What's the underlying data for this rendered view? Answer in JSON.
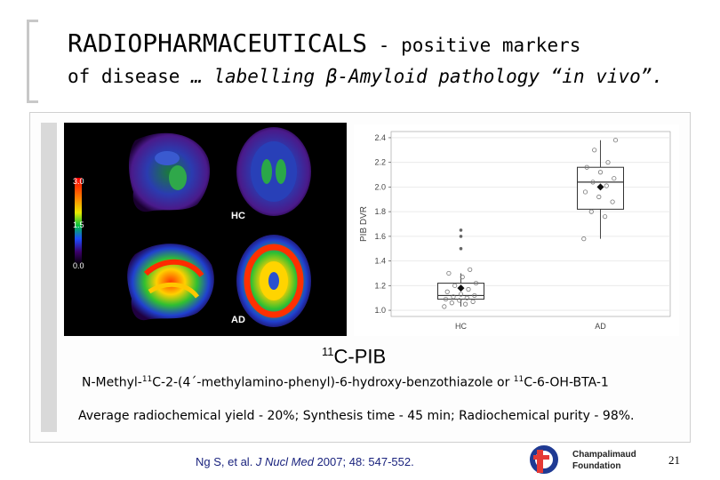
{
  "slide": {
    "title_main": "RADIOPHARMACEUTICALS",
    "title_sub": " - positive markers",
    "title_line2_a": "of disease ",
    "title_line2_b": " … labelling β-Amyloid pathology “in vivo”.",
    "tracer_sup": "11",
    "tracer_name": "C-PIB",
    "chem_a": "N-Methyl-",
    "chem_sup1": "11",
    "chem_b": "C-2-(4´-methylamino-phenyl)-6-hydroxy-benzothiazole or ",
    "chem_sup2": "11",
    "chem_c": "C-6-OH-BTA-1",
    "yield_text": "Average radiochemical yield - 20%; Synthesis time - 45 min; Radiochemical purity - 98%.",
    "ref_a": "Ng S, et al. ",
    "ref_journal": "J Nucl Med",
    "ref_b": " 2007; 48: 547-552.",
    "logo_line1": "Champalimaud",
    "logo_line2": "Foundation",
    "page_number": "21"
  },
  "pet_figure": {
    "scale_ticks": [
      "3.0",
      "1.5",
      "0.0"
    ],
    "row_labels": [
      "HC",
      "AD"
    ]
  },
  "chart_data": {
    "type": "box",
    "title": "",
    "xlabel": "",
    "ylabel": "PIB DVR",
    "categories": [
      "HC",
      "AD"
    ],
    "ylim": [
      0.95,
      2.45
    ],
    "yticks": [
      "1.0",
      "1.2",
      "1.4",
      "1.6",
      "1.8",
      "2.0",
      "2.2",
      "2.4"
    ],
    "grid": true,
    "boxes": [
      {
        "name": "HC",
        "q1": 1.09,
        "median": 1.12,
        "q3": 1.22,
        "whisker_low": 1.03,
        "whisker_high": 1.3,
        "mean": 1.18,
        "points": [
          1.03,
          1.05,
          1.06,
          1.07,
          1.08,
          1.09,
          1.1,
          1.11,
          1.12,
          1.13,
          1.15,
          1.17,
          1.2,
          1.22,
          1.27,
          1.3,
          1.33
        ],
        "outliers": [
          1.5,
          1.6,
          1.65
        ]
      },
      {
        "name": "AD",
        "q1": 1.82,
        "median": 2.04,
        "q3": 2.16,
        "whisker_low": 1.58,
        "whisker_high": 2.38,
        "mean": 2.0,
        "points": [
          1.58,
          1.76,
          1.8,
          1.88,
          1.92,
          1.96,
          2.01,
          2.04,
          2.07,
          2.12,
          2.16,
          2.2,
          2.3,
          2.38
        ]
      }
    ]
  }
}
